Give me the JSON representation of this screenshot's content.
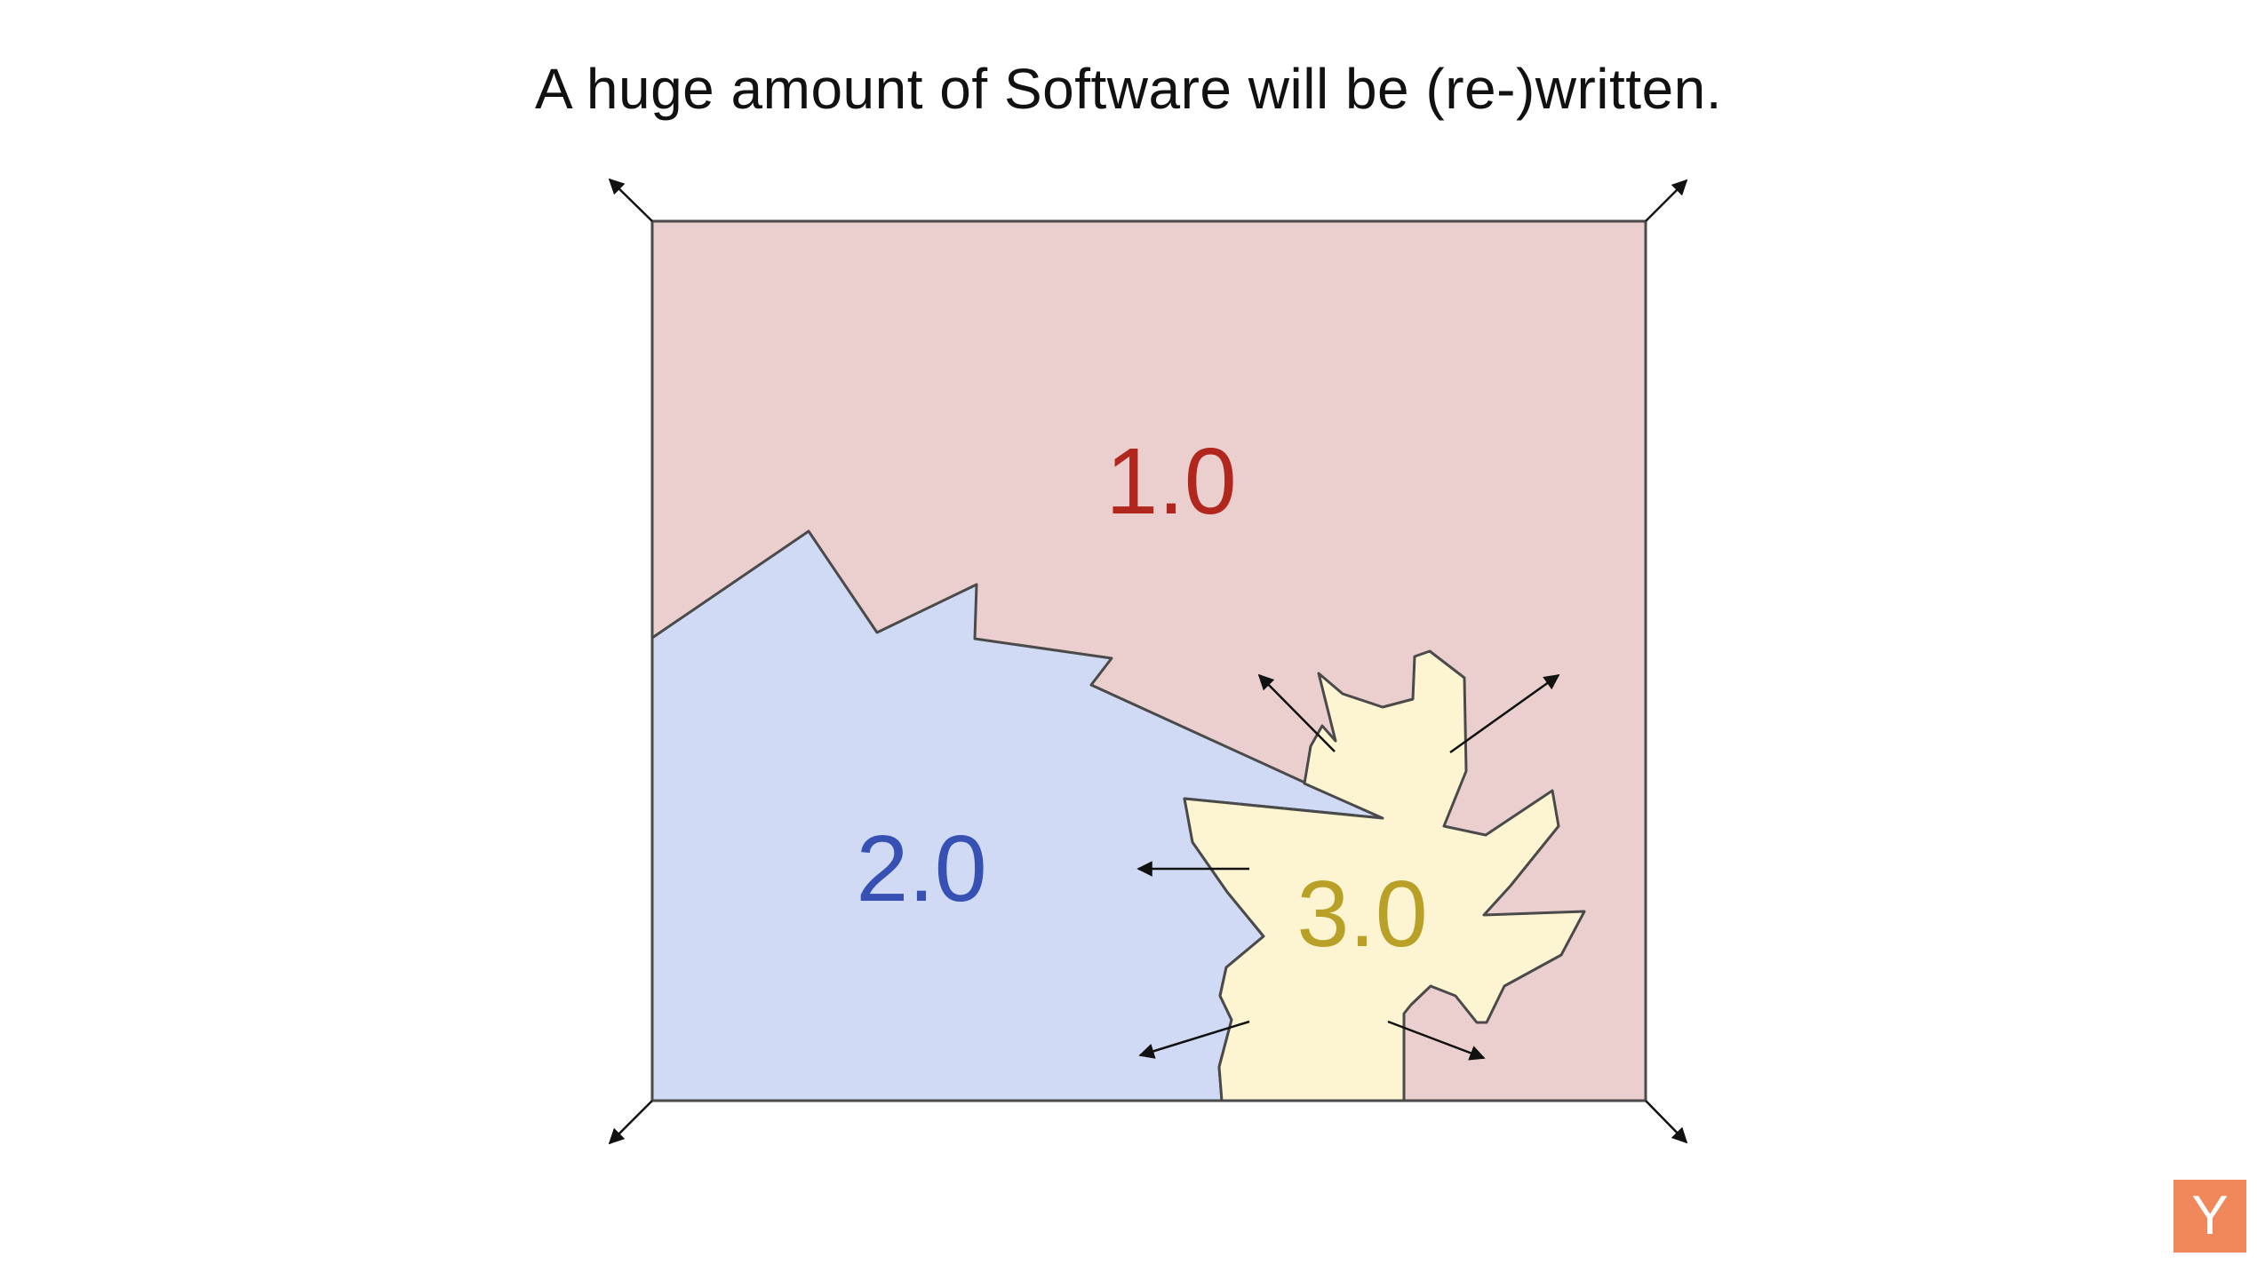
{
  "slide": {
    "title": "A huge amount of Software will be (re-)written."
  },
  "diagram": {
    "regions": [
      {
        "id": "software-1",
        "label": "1.0",
        "fill": "#ebcfcf",
        "text_color": "#b2271d"
      },
      {
        "id": "software-2",
        "label": "2.0",
        "fill": "#d0daf4",
        "text_color": "#3650b4"
      },
      {
        "id": "software-3",
        "label": "3.0",
        "fill": "#fdf4d2",
        "text_color": "#b9a127"
      }
    ],
    "outline_color": "#4a4a4a",
    "arrow_color": "#111111"
  },
  "logo": {
    "letter": "Y",
    "color": "#f0885b"
  }
}
